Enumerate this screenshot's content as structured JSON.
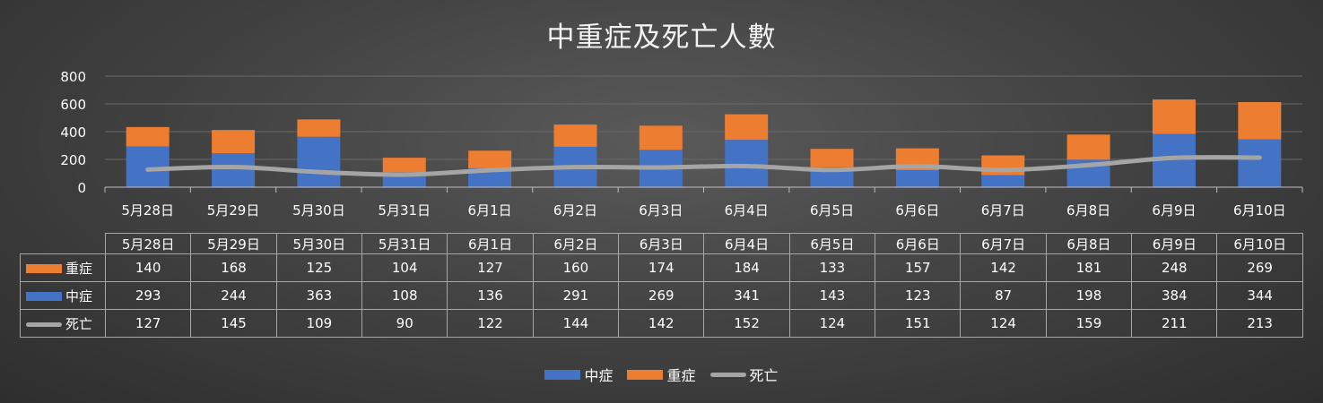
{
  "chart_data": {
    "type": "bar",
    "stacked": true,
    "title": "中重症及死亡人數",
    "categories": [
      "5月28日",
      "5月29日",
      "5月30日",
      "5月31日",
      "6月1日",
      "6月2日",
      "6月3日",
      "6月4日",
      "6月5日",
      "6月6日",
      "6月7日",
      "6月8日",
      "6月9日",
      "6月10日"
    ],
    "ylim": [
      0,
      800
    ],
    "yticks": [
      0,
      200,
      400,
      600,
      800
    ],
    "grid": true,
    "series": [
      {
        "name": "中症",
        "type": "bar",
        "color": "#4472c4",
        "values": [
          293,
          244,
          363,
          108,
          136,
          291,
          269,
          341,
          143,
          123,
          87,
          198,
          384,
          344
        ]
      },
      {
        "name": "重症",
        "type": "bar",
        "color": "#ed7d31",
        "values": [
          140,
          168,
          125,
          104,
          127,
          160,
          174,
          184,
          133,
          157,
          142,
          181,
          248,
          269
        ]
      },
      {
        "name": "死亡",
        "type": "line",
        "color": "#a5a5a5",
        "values": [
          127,
          145,
          109,
          90,
          122,
          144,
          142,
          152,
          124,
          151,
          124,
          159,
          211,
          213
        ]
      }
    ],
    "table_rows": [
      "重症",
      "中症",
      "死亡"
    ],
    "legend": [
      "中症",
      "重症",
      "死亡"
    ],
    "legend_position": "bottom"
  }
}
